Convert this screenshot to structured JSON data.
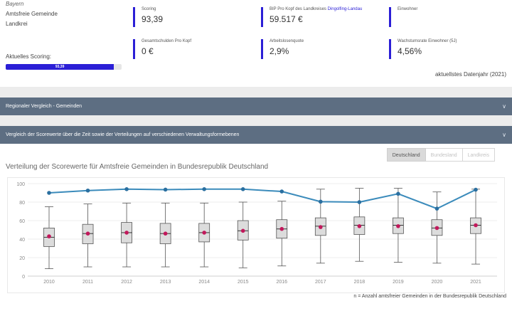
{
  "header": {
    "state": "Bayern",
    "region_line1": "Amtsfreie Gemeinde",
    "region_line2": "Landkrei",
    "score_caption": "Aktuelles Scoring:",
    "score_bar_label": "93,39",
    "score_fraction": 0.9339,
    "data_year": "aktuellstes Datenjahr (2021)"
  },
  "kpis": [
    {
      "label": "Scoring",
      "value": "93,39"
    },
    {
      "label": "BIP Pro Kopf des Landkreises ",
      "label_accent": "Dingolfing-Landau",
      "value": "59.517 €"
    },
    {
      "label": "Einwohner",
      "value": ""
    },
    {
      "label": "Gesamtschulden Pro Kopf",
      "value": "0 €"
    },
    {
      "label": "Arbeitslosenquote",
      "value": "2,9%"
    },
    {
      "label": "Wachstumsrate Einwohner (5J)",
      "value": "4,56%"
    }
  ],
  "sections": {
    "regional": "Regionaler Vergleich - Gemeinden",
    "comparison": "Vergleich der Scorewerte über die Zeit sowie der Verteilungen auf verschiedenen Verwaltungsformebenen"
  },
  "toggle": {
    "options": [
      "Deutschland",
      "Bundesland",
      "Landkreis"
    ],
    "active": "Deutschland"
  },
  "chart_title": "Verteilung der Scorewerte für Amtsfreie Gemeinden in Bundesrepublik Deutschland",
  "footnote": "n = Anzahl amtsfreier Gemeinden in der Bundesrepublik Deutschland",
  "colors": {
    "accent": "#2b1fd6",
    "line": "#3b8bbb",
    "mean": "#c2185b",
    "section_bar": "#5d6e82"
  },
  "chart_data": {
    "type": "box",
    "x": [
      "2010",
      "2011",
      "2012",
      "2013",
      "2014",
      "2015",
      "2016",
      "2017",
      "2018",
      "2019",
      "2020",
      "2021"
    ],
    "ylim": [
      0,
      100
    ],
    "yticks": [
      0,
      20,
      40,
      60,
      80,
      100
    ],
    "boxes": [
      {
        "min": 8,
        "q1": 32,
        "median": 42,
        "q3": 52,
        "max": 75
      },
      {
        "min": 10,
        "q1": 35,
        "median": 46,
        "q3": 56,
        "max": 78
      },
      {
        "min": 10,
        "q1": 36,
        "median": 47,
        "q3": 58,
        "max": 79
      },
      {
        "min": 10,
        "q1": 35,
        "median": 46,
        "q3": 57,
        "max": 79
      },
      {
        "min": 10,
        "q1": 37,
        "median": 47,
        "q3": 57,
        "max": 79
      },
      {
        "min": 9,
        "q1": 39,
        "median": 49,
        "q3": 60,
        "max": 80
      },
      {
        "min": 11,
        "q1": 41,
        "median": 51,
        "q3": 61,
        "max": 81
      },
      {
        "min": 14,
        "q1": 44,
        "median": 54,
        "q3": 63,
        "max": 94
      },
      {
        "min": 16,
        "q1": 45,
        "median": 55,
        "q3": 64,
        "max": 95
      },
      {
        "min": 15,
        "q1": 46,
        "median": 55,
        "q3": 63,
        "max": 95
      },
      {
        "min": 14,
        "q1": 44,
        "median": 52,
        "q3": 61,
        "max": 91
      },
      {
        "min": 13,
        "q1": 46,
        "median": 55,
        "q3": 63,
        "max": 94
      }
    ],
    "means": [
      43,
      46,
      47,
      46,
      47,
      49,
      51,
      53,
      54,
      54,
      52,
      55
    ],
    "region_score": [
      90,
      92.5,
      94,
      93.5,
      94,
      94,
      91.5,
      80.5,
      80,
      89,
      73,
      93.4
    ]
  }
}
